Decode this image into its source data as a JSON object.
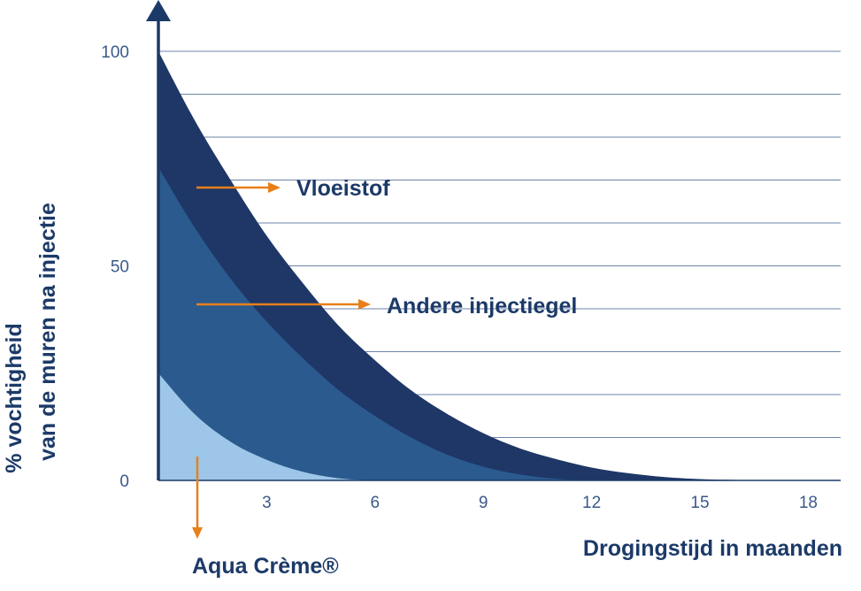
{
  "chart_data": {
    "type": "area",
    "xlabel": "Drogingstijd in maanden",
    "ylabel_lines": [
      "% vochtigheid",
      "van de muren na injectie"
    ],
    "x_ticks": [
      "3",
      "6",
      "9",
      "12",
      "15",
      "18"
    ],
    "y_ticks": [
      "0",
      "50",
      "100"
    ],
    "xlim": [
      0,
      19
    ],
    "ylim": [
      0,
      100
    ],
    "series": [
      {
        "name": "Vloeistof",
        "color": "#1e3767",
        "x": [
          0,
          1,
          2,
          3,
          4,
          5,
          6,
          7,
          8,
          9,
          10,
          11,
          12,
          13,
          14,
          15,
          16,
          17
        ],
        "y": [
          100,
          84,
          70,
          57,
          46,
          36,
          28,
          21,
          15.5,
          11,
          7.5,
          5,
          3,
          1.7,
          0.8,
          0.3,
          0.1,
          0
        ]
      },
      {
        "name": "Andere injectiegel",
        "color": "#2b5a8e",
        "x": [
          0,
          1,
          2,
          3,
          4,
          5,
          6,
          7,
          8,
          9,
          10,
          11,
          12
        ],
        "y": [
          73,
          59,
          47,
          37,
          28.5,
          21,
          15,
          10,
          6,
          3.2,
          1.4,
          0.4,
          0
        ]
      },
      {
        "name": "Aqua Crème®",
        "color": "#9dc6e8",
        "x": [
          0,
          1,
          2,
          3,
          4,
          5,
          6
        ],
        "y": [
          25,
          15.5,
          9,
          4.8,
          2,
          0.5,
          0
        ]
      }
    ],
    "annotations": [
      {
        "text": "Vloeistof",
        "target": "Vloeistof"
      },
      {
        "text": "Andere injectiegel",
        "target": "Andere injectiegel"
      },
      {
        "text": "Aqua Crème®",
        "target": "Aqua Crème®"
      }
    ],
    "grid": true,
    "colors": {
      "axis": "#1c3a68",
      "arrow": "#e8801a",
      "grid": "#6d84a8"
    }
  }
}
